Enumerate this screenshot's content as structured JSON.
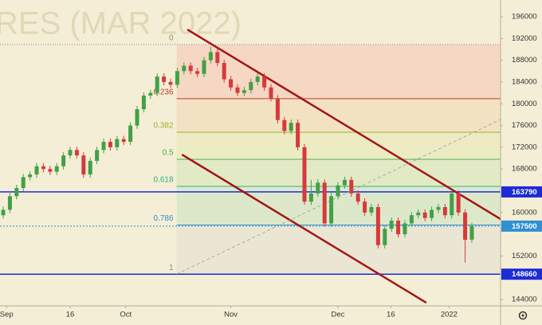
{
  "chart_data": {
    "type": "candlestick",
    "title": "RES (MAR 2022)",
    "open": [
      159500,
      160500,
      163000,
      164500,
      166500,
      167000,
      168500,
      168000,
      167500,
      168500,
      170500,
      171500,
      170500,
      167000,
      169500,
      171500,
      173000,
      172000,
      173500,
      173000,
      176000,
      179000,
      181500,
      182000,
      185000,
      184000,
      183500,
      186000,
      187000,
      186000,
      185500,
      188000,
      189500,
      187500,
      184500,
      183000,
      182000,
      182500,
      184000,
      185000,
      183000,
      181000,
      177000,
      175000,
      176500,
      172000,
      162000,
      163500,
      165500,
      158000,
      163000,
      165000,
      166000,
      163500,
      162000,
      160000,
      161000,
      154000,
      157000,
      158500,
      156000,
      158000,
      159500,
      160000,
      159000,
      160500,
      161000,
      159500,
      163500,
      160000,
      155000
    ],
    "high": [
      161100,
      163600,
      165100,
      167100,
      167600,
      169100,
      169100,
      168600,
      169100,
      171100,
      172100,
      172100,
      171100,
      170100,
      172100,
      173600,
      173600,
      174100,
      174100,
      176600,
      179600,
      182100,
      182600,
      185600,
      185600,
      184600,
      186600,
      187600,
      187600,
      186600,
      188600,
      190500,
      190100,
      188100,
      185100,
      183600,
      183100,
      184600,
      185600,
      185600,
      183600,
      181600,
      177600,
      177100,
      177100,
      172600,
      166000,
      166100,
      166100,
      163600,
      165600,
      166600,
      166600,
      164100,
      162600,
      161600,
      161600,
      157600,
      159100,
      159100,
      158600,
      160100,
      160600,
      160600,
      161100,
      161600,
      161600,
      164100,
      164100,
      160600,
      158100
    ],
    "low": [
      158900,
      159900,
      162400,
      163900,
      165900,
      166400,
      167400,
      166900,
      166900,
      167900,
      169900,
      169900,
      166400,
      166400,
      168900,
      170900,
      171400,
      171400,
      172400,
      172400,
      175400,
      178400,
      180900,
      181400,
      183400,
      182900,
      182900,
      185400,
      185400,
      184900,
      184900,
      187400,
      186900,
      183900,
      182400,
      181400,
      181400,
      181900,
      183400,
      182400,
      180400,
      176400,
      174400,
      174400,
      171400,
      161400,
      161400,
      162900,
      157400,
      157400,
      162400,
      164400,
      162900,
      161400,
      159400,
      159400,
      153400,
      153400,
      156400,
      155400,
      155400,
      157400,
      158900,
      158400,
      158400,
      159900,
      158900,
      158900,
      159400,
      150800,
      154400
    ],
    "close": [
      160500,
      163000,
      164500,
      166500,
      167000,
      168500,
      168000,
      167500,
      168500,
      170500,
      171500,
      170500,
      167000,
      169500,
      171500,
      173000,
      172000,
      173500,
      173000,
      176000,
      179000,
      181500,
      182000,
      185000,
      184000,
      183500,
      186000,
      187000,
      186000,
      185500,
      188000,
      189500,
      187500,
      184500,
      183000,
      182000,
      182500,
      184000,
      185000,
      183000,
      181000,
      177000,
      175000,
      176500,
      172000,
      162000,
      163500,
      165500,
      158000,
      163000,
      165000,
      166000,
      163500,
      162000,
      160000,
      161000,
      154000,
      157000,
      158500,
      156000,
      158000,
      159500,
      160000,
      159000,
      160500,
      161000,
      159500,
      163500,
      160000,
      155000,
      157500
    ],
    "up_color": "#43a047",
    "down_color": "#d63a3a",
    "xlim": [
      -0.48,
      74.29
    ],
    "xticks": [
      {
        "value": 0.5,
        "label": "Sep"
      },
      {
        "value": 10,
        "label": "16"
      },
      {
        "value": 18.3,
        "label": "Oct"
      },
      {
        "value": 34,
        "label": "Nov"
      },
      {
        "value": 50,
        "label": "Dec"
      },
      {
        "value": 57.9,
        "label": "16"
      },
      {
        "value": 66.6,
        "label": "2022"
      }
    ],
    "ylim": [
      142830,
      199080
    ],
    "yticks": [
      196000,
      192000,
      188000,
      184000,
      180000,
      176000,
      172000,
      168000,
      160000,
      152000,
      144000
    ],
    "fibonacci": {
      "start": 25.9,
      "levels": [
        0,
        0.236,
        0.382,
        0.5,
        0.618,
        0.786,
        1
      ],
      "prices": [
        190900,
        180932,
        174765,
        169780,
        164796,
        157700,
        148660
      ],
      "colors": [
        "#8a8a8a",
        "#c0392b",
        "#9bb52a",
        "#4caf50",
        "#2fae8a",
        "#2f8fd0",
        "#8a8a8a"
      ],
      "fills": [
        "#f6d7c3",
        "#f3e2c2",
        "#ecebc4",
        "#e2eac5",
        "#dde8cb",
        "#ebe6d3"
      ]
    },
    "trend_lines": [
      {
        "x": [
          27.5,
          74.3
        ],
        "y": [
          193656,
          158795
        ],
        "color": "#a31515"
      },
      {
        "x": [
          26.7,
          63.2
        ],
        "y": [
          170659,
          143414
        ],
        "color": "#a31515"
      },
      {
        "x": [
          25.9,
          74.3
        ],
        "y": [
          148660,
          177104
        ],
        "color": "#9a9a9a",
        "dashed": true
      }
    ],
    "price_lines": [
      {
        "value": 163790,
        "color": "#1d2bd6"
      },
      {
        "value": 157500,
        "color": "#2f8fd0",
        "dashed": true
      },
      {
        "value": 148660,
        "color": "#1d2bd6"
      }
    ],
    "background": "#f4eed6"
  }
}
